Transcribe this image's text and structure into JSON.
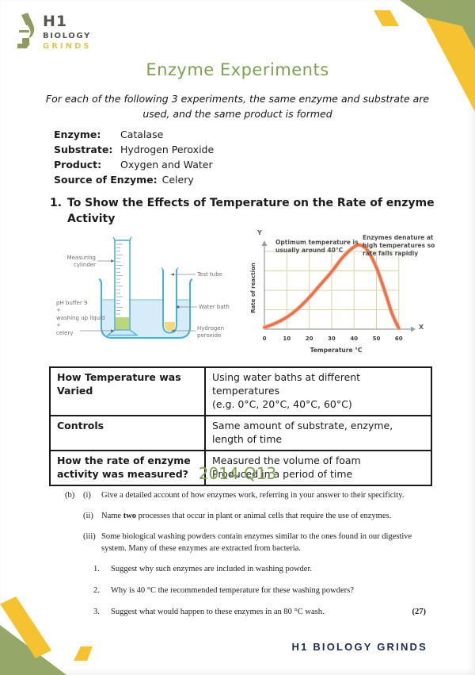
{
  "brand": {
    "logo_h1": "H1",
    "logo_biology": "BIOLOGY",
    "logo_grinds": "GRINDS",
    "footer": "H1 BIOLOGY GRINDS"
  },
  "header": {
    "title": "Enzyme Experiments",
    "intro_line1": "For each of the following 3 experiments, the same enzyme and substrate are",
    "intro_line2": "used, and the same product is formed"
  },
  "details": {
    "rows": [
      {
        "label": "Enzyme:",
        "value": "Catalase"
      },
      {
        "label": "Substrate:",
        "value": "Hydrogen Peroxide"
      },
      {
        "label": "Product:",
        "value": "Oxygen and Water"
      },
      {
        "label": "Source of Enzyme:",
        "value": "Celery"
      }
    ]
  },
  "section1": {
    "number": "1.",
    "line1": "To Show the Effects of Temperature on the Rate of enzyme",
    "line2": "Activity"
  },
  "apparatus": {
    "labels": {
      "measuring_cylinder": "Measuring\ncylinder",
      "test_tube": "Test tube",
      "mixture": "pH buffer 9\n+\nwashing up liquid\n+\ncelery",
      "water_bath": "Water bath",
      "hydrogen_peroxide": "Hydrogen\nperoxide"
    }
  },
  "chart_data": {
    "type": "line",
    "title": "",
    "xlabel": "Temperature °C",
    "ylabel": "Rate of reaction",
    "x_axis_letter": "X",
    "y_axis_letter": "Y",
    "x_ticks": [
      0,
      10,
      20,
      30,
      40,
      50,
      60
    ],
    "xlim": [
      0,
      65
    ],
    "ylim": [
      0,
      1.05
    ],
    "grid": true,
    "y_gridlines": 4,
    "series": [
      {
        "name": "rate of reaction vs temperature",
        "x": [
          0,
          5,
          10,
          15,
          20,
          25,
          30,
          35,
          40,
          43,
          46,
          50,
          54,
          57,
          60
        ],
        "y": [
          0.02,
          0.07,
          0.14,
          0.24,
          0.37,
          0.52,
          0.67,
          0.84,
          0.96,
          0.98,
          0.92,
          0.72,
          0.42,
          0.18,
          0.01
        ]
      }
    ],
    "annotations": [
      "Optimum temperature is usually around 40°C",
      "Enzymes denature at high temperatures so rate falls rapidly"
    ],
    "line_color": "#e8714b",
    "grid_color": "#dbd2a8",
    "axis_color": "#9aa0a0"
  },
  "results_table": {
    "rows": [
      {
        "label": "How Temperature was Varied",
        "value": "Using water baths at different temperatures\n(e.g. 0°C, 20°C, 40°C, 60°C)"
      },
      {
        "label": "Controls",
        "value": "Same amount of substrate, enzyme, length of time"
      },
      {
        "label": "How the rate of enzyme activity was measured?",
        "value": "Measured the volume of foam\nProduced in a period of time"
      }
    ]
  },
  "question": {
    "heading": "2014 Q13",
    "part": "(b)",
    "items": [
      {
        "num": "(i)",
        "text": "Give a detailed account of how enzymes work, referring in your answer to their specificity."
      },
      {
        "num": "(ii)",
        "text_pre": "Name ",
        "text_bold": "two",
        "text_post": " processes that occur in plant or animal cells that require the use of enzymes."
      },
      {
        "num": "(iii)",
        "text": "Some biological washing powders contain enzymes similar to the ones found in our digestive system. Many of these enzymes are extracted from bacteria."
      }
    ],
    "numbered": [
      {
        "num": "1.",
        "text": "Suggest why such enzymes are included in washing powder."
      },
      {
        "num": "2.",
        "text": "Why is 40 °C the recommended temperature for these washing powders?"
      },
      {
        "num": "3.",
        "text": "Suggest what would happen to these enzymes in an 80 °C wash."
      }
    ],
    "marks": "(27)"
  },
  "colors": {
    "accent_green": "#7da054",
    "corner_green": "#95a869",
    "corner_yellow": "#f5c232",
    "footer_navy": "#1d2b52",
    "curve_orange": "#e8714b"
  }
}
